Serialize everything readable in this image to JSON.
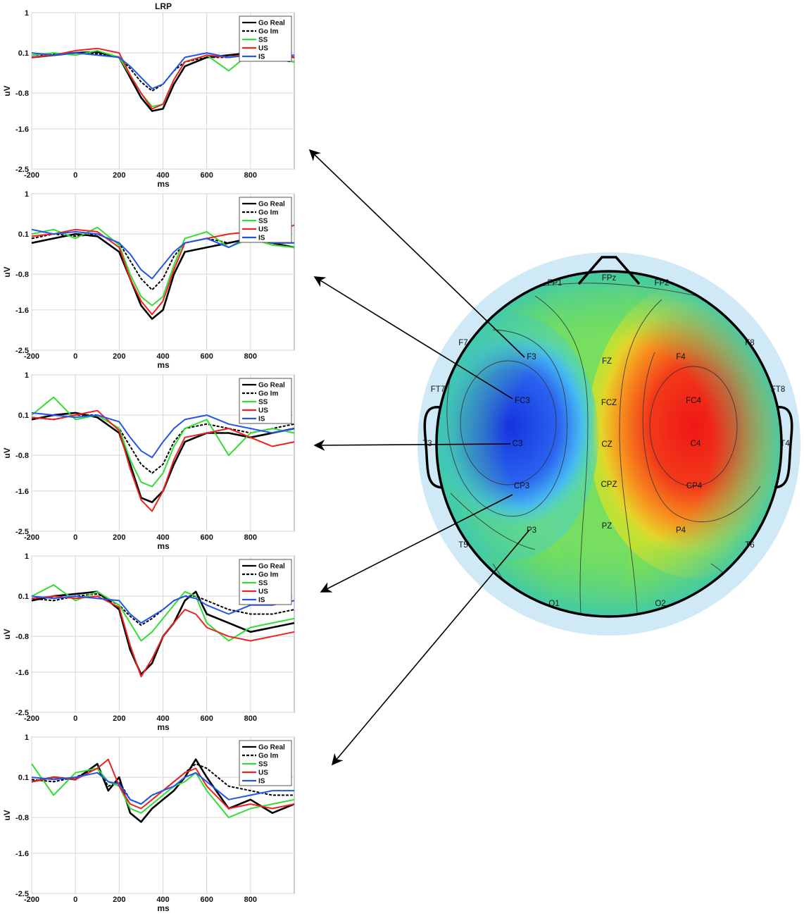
{
  "chart_data": [
    {
      "type": "line",
      "title": "LRP",
      "xlabel": "ms",
      "ylabel": "uV",
      "xlim": [
        -200,
        1000
      ],
      "ylim": [
        -2.5,
        1
      ],
      "xticks": [
        "-200",
        "0",
        "200",
        "400",
        "600",
        "800"
      ],
      "yticks": [
        "1",
        "0.1",
        "-0.8",
        "-1.6",
        "-2.5"
      ],
      "legend": "top-right",
      "x": [
        -200,
        -100,
        0,
        100,
        200,
        250,
        300,
        350,
        400,
        450,
        500,
        600,
        700,
        800,
        900,
        1000
      ],
      "series": [
        {
          "name": "Go Real",
          "style": "solid",
          "color": "#000000",
          "values": [
            0.0,
            0.05,
            0.1,
            0.12,
            0.0,
            -0.45,
            -0.9,
            -1.2,
            -1.15,
            -0.6,
            -0.2,
            0.0,
            0.05,
            0.1,
            0.05,
            0.0
          ]
        },
        {
          "name": "Go Im",
          "style": "dashed",
          "color": "#000000",
          "values": [
            0.05,
            0.08,
            0.1,
            0.08,
            0.0,
            -0.25,
            -0.55,
            -0.75,
            -0.6,
            -0.3,
            -0.1,
            0.0,
            0.0,
            0.05,
            -0.05,
            -0.1
          ]
        },
        {
          "name": "SS",
          "style": "solid",
          "color": "#33dd33",
          "values": [
            0.05,
            0.1,
            0.05,
            0.15,
            0.0,
            -0.4,
            -0.8,
            -1.1,
            -1.05,
            -0.5,
            -0.1,
            0.05,
            -0.3,
            0.1,
            0.0,
            -0.1
          ]
        },
        {
          "name": "US",
          "style": "solid",
          "color": "#ee2222",
          "values": [
            0.0,
            0.05,
            0.15,
            0.2,
            0.1,
            -0.4,
            -0.8,
            -1.15,
            -1.05,
            -0.5,
            -0.1,
            0.05,
            0.0,
            0.1,
            0.0,
            0.0
          ]
        },
        {
          "name": "IS",
          "style": "solid",
          "color": "#2255ee",
          "values": [
            0.1,
            0.05,
            0.1,
            0.05,
            0.0,
            -0.2,
            -0.45,
            -0.7,
            -0.6,
            -0.3,
            0.0,
            0.1,
            0.0,
            0.05,
            0.0,
            0.05
          ]
        }
      ]
    },
    {
      "type": "line",
      "title": "",
      "xlabel": "ms",
      "ylabel": "uV",
      "xlim": [
        -200,
        1000
      ],
      "ylim": [
        -2.5,
        1
      ],
      "xticks": [
        "-200",
        "0",
        "200",
        "400",
        "600",
        "800"
      ],
      "yticks": [
        "1",
        "0.1",
        "-0.8",
        "-1.6",
        "-2.5"
      ],
      "legend": "top-right",
      "x": [
        -200,
        -100,
        0,
        100,
        200,
        250,
        300,
        350,
        400,
        450,
        500,
        600,
        700,
        800,
        900,
        1000
      ],
      "series": [
        {
          "name": "Go Real",
          "style": "solid",
          "color": "#000000",
          "values": [
            -0.1,
            0.0,
            0.1,
            0.05,
            -0.3,
            -0.9,
            -1.5,
            -1.8,
            -1.6,
            -0.8,
            -0.3,
            -0.2,
            -0.1,
            0.0,
            -0.1,
            -0.2
          ]
        },
        {
          "name": "Go Im",
          "style": "dashed",
          "color": "#000000",
          "values": [
            0.0,
            0.1,
            0.05,
            0.1,
            -0.1,
            -0.5,
            -0.9,
            -1.15,
            -0.9,
            -0.4,
            -0.1,
            0.0,
            -0.1,
            0.0,
            -0.1,
            -0.1
          ]
        },
        {
          "name": "SS",
          "style": "solid",
          "color": "#33dd33",
          "values": [
            0.1,
            0.2,
            0.0,
            0.25,
            -0.15,
            -0.8,
            -1.3,
            -1.5,
            -1.3,
            -0.6,
            0.0,
            0.15,
            -0.2,
            0.0,
            -0.15,
            -0.2
          ]
        },
        {
          "name": "US",
          "style": "solid",
          "color": "#ee2222",
          "values": [
            0.05,
            0.1,
            0.2,
            0.15,
            -0.2,
            -0.9,
            -1.4,
            -1.7,
            -1.4,
            -0.7,
            -0.1,
            0.0,
            0.1,
            0.15,
            0.1,
            0.3
          ]
        },
        {
          "name": "IS",
          "style": "solid",
          "color": "#2255ee",
          "values": [
            0.2,
            0.1,
            0.15,
            0.1,
            -0.1,
            -0.35,
            -0.7,
            -0.9,
            -0.6,
            -0.3,
            -0.1,
            0.0,
            -0.2,
            0.05,
            -0.1,
            -0.1
          ]
        }
      ]
    },
    {
      "type": "line",
      "title": "",
      "xlabel": "ms",
      "ylabel": "uV",
      "xlim": [
        -200,
        1000
      ],
      "ylim": [
        -2.5,
        1
      ],
      "xticks": [
        "-200",
        "0",
        "200",
        "400",
        "600",
        "800"
      ],
      "yticks": [
        "1",
        "0.1",
        "-0.8",
        "-1.6",
        "-2.5"
      ],
      "legend": "top-right",
      "x": [
        -200,
        -100,
        0,
        100,
        200,
        250,
        300,
        350,
        400,
        450,
        500,
        600,
        700,
        800,
        900,
        1000
      ],
      "series": [
        {
          "name": "Go Real",
          "style": "solid",
          "color": "#000000",
          "values": [
            0.0,
            0.1,
            0.15,
            0.05,
            -0.3,
            -1.0,
            -1.75,
            -1.85,
            -1.6,
            -1.0,
            -0.5,
            -0.3,
            -0.3,
            -0.4,
            -0.3,
            -0.2
          ]
        },
        {
          "name": "Go Im",
          "style": "dashed",
          "color": "#000000",
          "values": [
            0.05,
            0.0,
            0.1,
            0.1,
            -0.2,
            -0.6,
            -1.0,
            -1.2,
            -1.0,
            -0.5,
            -0.2,
            -0.1,
            -0.2,
            -0.3,
            -0.2,
            -0.1
          ]
        },
        {
          "name": "SS",
          "style": "solid",
          "color": "#33dd33",
          "values": [
            0.1,
            0.5,
            0.0,
            0.1,
            -0.2,
            -0.9,
            -1.4,
            -1.5,
            -1.2,
            -0.6,
            -0.2,
            0.0,
            -0.8,
            -0.3,
            -0.2,
            -0.3
          ]
        },
        {
          "name": "US",
          "style": "solid",
          "color": "#ee2222",
          "values": [
            0.05,
            0.0,
            0.1,
            0.2,
            -0.25,
            -1.1,
            -1.8,
            -2.05,
            -1.6,
            -0.9,
            -0.4,
            -0.3,
            -0.2,
            -0.4,
            -0.6,
            -0.5
          ]
        },
        {
          "name": "IS",
          "style": "solid",
          "color": "#2255ee",
          "values": [
            0.15,
            0.1,
            0.05,
            0.1,
            -0.05,
            -0.4,
            -0.7,
            -0.85,
            -0.5,
            -0.2,
            0.0,
            0.1,
            -0.1,
            -0.2,
            -0.3,
            -0.2
          ]
        }
      ]
    },
    {
      "type": "line",
      "title": "",
      "xlabel": "ms",
      "ylabel": "uV",
      "xlim": [
        -200,
        1000
      ],
      "ylim": [
        -2.5,
        1
      ],
      "xticks": [
        "-200",
        "0",
        "200",
        "400",
        "600",
        "800"
      ],
      "yticks": [
        "1",
        "0.1",
        "-0.8",
        "-1.6",
        "-2.5"
      ],
      "legend": "top-right",
      "x": [
        -200,
        -100,
        0,
        100,
        200,
        250,
        300,
        350,
        400,
        450,
        500,
        550,
        600,
        700,
        800,
        900,
        1000
      ],
      "series": [
        {
          "name": "Go Real",
          "style": "solid",
          "color": "#000000",
          "values": [
            0.0,
            0.1,
            0.15,
            0.2,
            -0.2,
            -1.1,
            -1.65,
            -1.4,
            -0.8,
            -0.5,
            0.0,
            0.2,
            -0.3,
            -0.5,
            -0.7,
            -0.6,
            -0.5
          ]
        },
        {
          "name": "Go Im",
          "style": "dashed",
          "color": "#000000",
          "values": [
            0.05,
            0.0,
            0.1,
            0.15,
            -0.1,
            -0.35,
            -0.55,
            -0.4,
            -0.2,
            0.0,
            0.1,
            0.1,
            0.0,
            -0.2,
            -0.3,
            -0.3,
            -0.2
          ]
        },
        {
          "name": "SS",
          "style": "solid",
          "color": "#33dd33",
          "values": [
            0.1,
            0.35,
            0.0,
            0.2,
            -0.1,
            -0.5,
            -0.9,
            -0.7,
            -0.4,
            -0.1,
            0.2,
            0.1,
            -0.5,
            -0.9,
            -0.6,
            -0.5,
            -0.4
          ]
        },
        {
          "name": "US",
          "style": "solid",
          "color": "#ee2222",
          "values": [
            0.05,
            0.1,
            0.05,
            0.1,
            -0.15,
            -1.0,
            -1.7,
            -1.3,
            -0.8,
            -0.5,
            -0.2,
            -0.3,
            -0.6,
            -0.8,
            -0.9,
            -0.8,
            -0.7
          ]
        },
        {
          "name": "IS",
          "style": "solid",
          "color": "#2255ee",
          "values": [
            0.1,
            0.05,
            0.1,
            0.05,
            0.0,
            -0.3,
            -0.5,
            -0.35,
            -0.2,
            0.0,
            0.1,
            0.05,
            -0.1,
            -0.3,
            -0.1,
            -0.1,
            0.0
          ]
        }
      ]
    },
    {
      "type": "line",
      "title": "",
      "xlabel": "ms",
      "ylabel": "uV",
      "xlim": [
        -200,
        1000
      ],
      "ylim": [
        -2.5,
        1
      ],
      "xticks": [
        "-200",
        "0",
        "200",
        "400",
        "600",
        "800"
      ],
      "yticks": [
        "1",
        "0.1",
        "-0.8",
        "-1.6",
        "-2.5"
      ],
      "legend": "top-right",
      "x": [
        -200,
        -100,
        0,
        100,
        150,
        200,
        250,
        300,
        350,
        400,
        450,
        500,
        550,
        600,
        700,
        800,
        900,
        1000
      ],
      "series": [
        {
          "name": "Go Real",
          "style": "solid",
          "color": "#000000",
          "values": [
            0.0,
            0.1,
            0.05,
            0.4,
            -0.2,
            0.1,
            -0.7,
            -0.9,
            -0.6,
            -0.4,
            -0.2,
            0.1,
            0.5,
            0.1,
            -0.6,
            -0.4,
            -0.7,
            -0.5
          ]
        },
        {
          "name": "Go Im",
          "style": "dashed",
          "color": "#000000",
          "values": [
            0.05,
            0.0,
            0.1,
            0.3,
            -0.1,
            0.0,
            -0.4,
            -0.5,
            -0.3,
            -0.2,
            0.0,
            0.2,
            0.4,
            0.3,
            -0.1,
            -0.2,
            -0.3,
            -0.3
          ]
        },
        {
          "name": "SS",
          "style": "solid",
          "color": "#33dd33",
          "values": [
            0.4,
            -0.3,
            0.2,
            0.3,
            0.0,
            -0.1,
            -0.6,
            -0.7,
            -0.5,
            -0.3,
            -0.1,
            0.0,
            0.2,
            -0.2,
            -0.8,
            -0.6,
            -0.5,
            -0.4
          ]
        },
        {
          "name": "US",
          "style": "solid",
          "color": "#ee2222",
          "values": [
            0.0,
            0.1,
            0.05,
            0.3,
            0.5,
            -0.1,
            -0.5,
            -0.6,
            -0.4,
            -0.2,
            0.0,
            0.2,
            0.3,
            -0.1,
            -0.6,
            -0.5,
            -0.6,
            -0.5
          ]
        },
        {
          "name": "IS",
          "style": "solid",
          "color": "#2255ee",
          "values": [
            0.1,
            0.05,
            0.1,
            0.2,
            0.0,
            -0.05,
            -0.4,
            -0.5,
            -0.3,
            -0.2,
            -0.1,
            0.1,
            0.2,
            0.0,
            -0.4,
            -0.3,
            -0.2,
            -0.2
          ]
        }
      ]
    }
  ],
  "scalp_map": {
    "electrodes": [
      "FP1",
      "FPz",
      "FP2",
      "F7",
      "F3",
      "FZ",
      "F4",
      "F8",
      "FT7",
      "FC3",
      "FCZ",
      "FC4",
      "FT8",
      "T3",
      "C3",
      "CZ",
      "C4",
      "T4",
      "CP3",
      "CPZ",
      "CP4",
      "T5",
      "P3",
      "PZ",
      "P4",
      "T6",
      "O1",
      "O2"
    ],
    "arrow_sources": [
      "F3",
      "FC3",
      "C3",
      "CP3",
      "P3"
    ],
    "colors": {
      "negative": "#1a3ee8",
      "neutral": "#7ee05a",
      "positive": "#f01818",
      "halo": "#cfeaf6"
    }
  }
}
